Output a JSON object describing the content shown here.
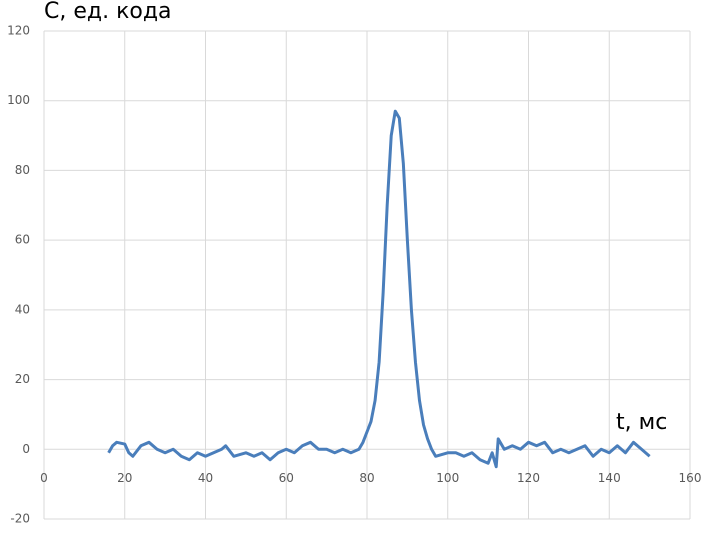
{
  "chart_data": {
    "type": "line",
    "y_label": "C, ед. кода",
    "x_label": "t, мс",
    "x": [
      16,
      17,
      18,
      20,
      21,
      22,
      24,
      26,
      28,
      30,
      32,
      34,
      36,
      38,
      40,
      42,
      44,
      45,
      47,
      50,
      52,
      54,
      56,
      58,
      60,
      62,
      64,
      66,
      68,
      70,
      72,
      74,
      76,
      78,
      79,
      80,
      81,
      82,
      83,
      84,
      85,
      86,
      87,
      88,
      89,
      90,
      91,
      92,
      93,
      94,
      95,
      96,
      97,
      100,
      102,
      104,
      106,
      108,
      110,
      111,
      112,
      112.5,
      114,
      116,
      118,
      120,
      122,
      124,
      126,
      128,
      130,
      132,
      134,
      136,
      138,
      140,
      142,
      144,
      146,
      148,
      150
    ],
    "series": [
      {
        "color": "#4a7ebb",
        "values": [
          -1,
          1,
          2,
          1.5,
          -1,
          -2,
          1,
          2,
          0,
          -1,
          0,
          -2,
          -3,
          -1,
          -2,
          -1,
          0,
          1,
          -2,
          -1,
          -2,
          -1,
          -3,
          -1,
          0,
          -1,
          1,
          2,
          0,
          0,
          -1,
          0,
          -1,
          0,
          2,
          5,
          8,
          14,
          25,
          45,
          70,
          90,
          97,
          95,
          82,
          60,
          40,
          25,
          14,
          7,
          3,
          0,
          -2,
          -1,
          -1,
          -2,
          -1,
          -3,
          -4,
          -1,
          -5,
          3,
          0,
          1,
          0,
          2,
          1,
          2,
          -1,
          0,
          -1,
          0,
          1,
          -2,
          0,
          -1,
          1,
          -1,
          2,
          0,
          -2
        ]
      }
    ],
    "xlim": [
      0,
      160
    ],
    "xticks": [
      0,
      20,
      40,
      60,
      80,
      100,
      120,
      140,
      160
    ],
    "ylim": [
      -20,
      120
    ],
    "yticks": [
      -20,
      0,
      20,
      40,
      60,
      80,
      100,
      120
    ],
    "grid": true
  }
}
